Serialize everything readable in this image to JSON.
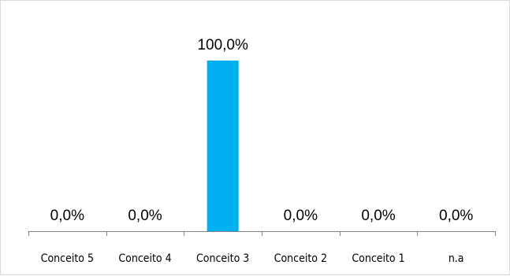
{
  "chart_data": {
    "type": "bar",
    "categories": [
      "Conceito 5",
      "Conceito 4",
      "Conceito 3",
      "Conceito 2",
      "Conceito 1",
      "n.a"
    ],
    "values": [
      0.0,
      0.0,
      100.0,
      0.0,
      0.0,
      0.0
    ],
    "data_labels": [
      "0,0%",
      "0,0%",
      "100,0%",
      "0,0%",
      "0,0%",
      "0,0%"
    ],
    "ylim": [
      0,
      100
    ],
    "unit": "%",
    "grid": false,
    "legend": "none",
    "bar_color": "#00B0F0",
    "axis_color": "#808080"
  }
}
